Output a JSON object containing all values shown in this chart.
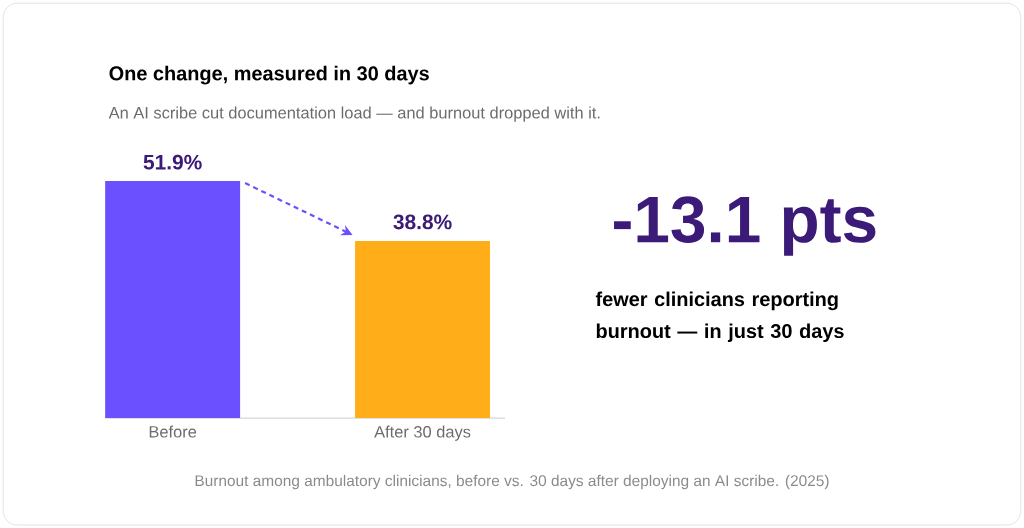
{
  "chart_data": {
    "type": "bar",
    "title": "One change, measured in 30 days",
    "subtitle": "An AI scribe cut documentation load — and burnout dropped with it.",
    "categories": [
      "Before",
      "After 30 days"
    ],
    "values": [
      51.9,
      38.8
    ],
    "colors": [
      "#6b50ff",
      "#ffae19"
    ],
    "value_labels": [
      "51.9%",
      "38.8%"
    ],
    "tick_labels": "x",
    "annotations": [
      "-13.1 pts",
      "fewer clinicians reporting burnout — in just 30 days",
      "Burnout among ambulatory clinicians, before vs. 30 days after deploying an AI scribe. (2025)"
    ]
  }
}
